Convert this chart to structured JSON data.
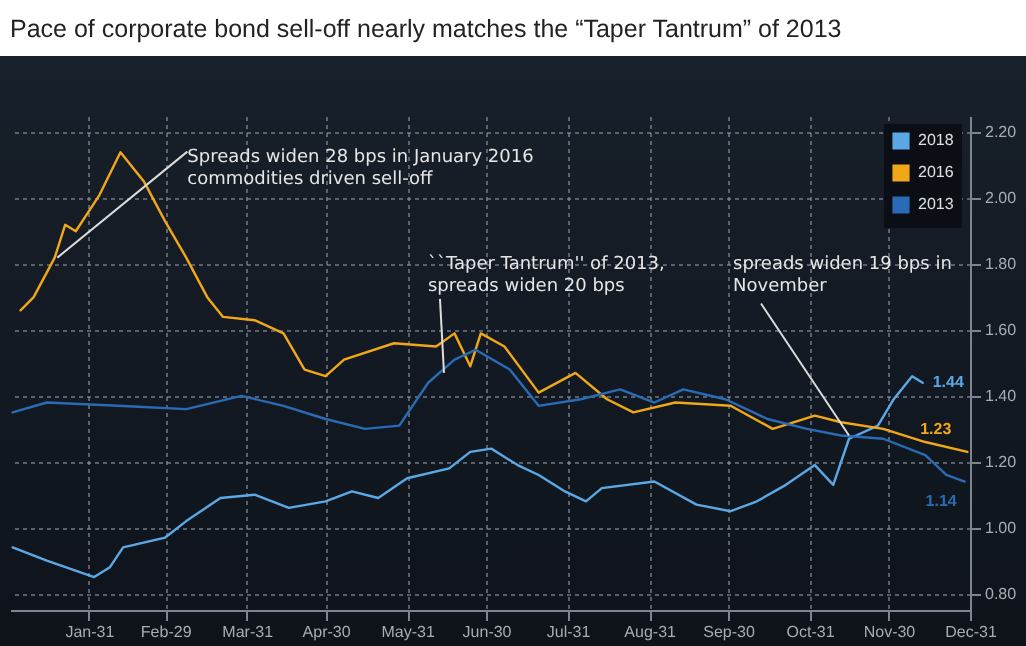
{
  "chart_data": {
    "type": "line",
    "title": "Pace of corporate bond sell-off nearly matches the “Taper Tantrum” of 2013",
    "xlim": [
      "--01-01",
      "--12-31"
    ],
    "xticks": [
      {
        "value": "--01-31",
        "label": "Jan-31"
      },
      {
        "value": "--02-29",
        "label": "Feb-29"
      },
      {
        "value": "--03-31",
        "label": "Mar-31"
      },
      {
        "value": "--04-30",
        "label": "Apr-30"
      },
      {
        "value": "--05-31",
        "label": "May-31"
      },
      {
        "value": "--06-30",
        "label": "Jun-30"
      },
      {
        "value": "--07-31",
        "label": "Jul-31"
      },
      {
        "value": "--08-31",
        "label": "Aug-31"
      },
      {
        "value": "--09-30",
        "label": "Sep-30"
      },
      {
        "value": "--10-31",
        "label": "Oct-31"
      },
      {
        "value": "--11-30",
        "label": "Nov-30"
      },
      {
        "value": "--12-31",
        "label": "Dec-31"
      }
    ],
    "ylim": [
      0.75,
      2.25
    ],
    "yticks": [
      {
        "value": 0.8,
        "label": "0.80"
      },
      {
        "value": 1.0,
        "label": "1.00"
      },
      {
        "value": 1.2,
        "label": "1.20"
      },
      {
        "value": 1.4,
        "label": "1.40"
      },
      {
        "value": 1.6,
        "label": "1.60"
      },
      {
        "value": 1.8,
        "label": "1.80"
      },
      {
        "value": 2.0,
        "label": "2.00"
      },
      {
        "value": 2.2,
        "label": "2.20"
      }
    ],
    "grid": true,
    "legend": "top right",
    "line_style": "solid",
    "series": [
      {
        "name": "2018",
        "color": "#5aa9e6",
        "x": [
          "--01-02",
          "--01-15",
          "--02-02",
          "--02-08",
          "--02-13",
          "--02-29",
          "--03-08",
          "--03-21",
          "--04-03",
          "--04-16",
          "--04-30",
          "--05-10",
          "--05-20",
          "--05-31",
          "--06-16",
          "--06-24",
          "--07-02",
          "--07-12",
          "--07-20",
          "--07-30",
          "--08-07",
          "--08-13",
          "--09-02",
          "--09-18",
          "--10-01",
          "--10-11",
          "--10-22",
          "--11-02",
          "--11-09",
          "--11-15",
          "--11-26",
          "--12-02",
          "--12-09",
          "--12-13"
        ],
        "values": [
          0.94,
          0.9,
          0.85,
          0.88,
          0.94,
          0.97,
          1.02,
          1.09,
          1.1,
          1.06,
          1.08,
          1.11,
          1.09,
          1.15,
          1.18,
          1.23,
          1.24,
          1.19,
          1.16,
          1.11,
          1.08,
          1.12,
          1.14,
          1.07,
          1.05,
          1.08,
          1.13,
          1.19,
          1.13,
          1.27,
          1.31,
          1.39,
          1.46,
          1.44
        ],
        "value_labels": [
          null,
          null,
          null,
          null,
          null,
          null,
          null,
          null,
          null,
          null,
          null,
          null,
          null,
          null,
          null,
          null,
          null,
          null,
          null,
          null,
          null,
          null,
          null,
          null,
          null,
          null,
          null,
          null,
          null,
          null,
          null,
          null,
          null,
          "1.44"
        ]
      },
      {
        "name": "2016",
        "color": "#f0a818",
        "x": [
          "--01-05",
          "--01-10",
          "--01-18",
          "--01-22",
          "--01-26",
          "--02-04",
          "--02-12",
          "--02-21",
          "--02-29",
          "--03-08",
          "--03-16",
          "--03-22",
          "--04-03",
          "--04-14",
          "--04-22",
          "--04-30",
          "--05-07",
          "--05-26",
          "--06-11",
          "--06-18",
          "--06-24",
          "--06-28",
          "--07-07",
          "--07-20",
          "--08-03",
          "--08-15",
          "--08-25",
          "--09-10",
          "--10-01",
          "--10-17",
          "--11-02",
          "--11-12",
          "--11-28",
          "--12-14",
          "--12-30"
        ],
        "values": [
          1.66,
          1.7,
          1.82,
          1.92,
          1.9,
          2.01,
          2.14,
          2.05,
          1.93,
          1.82,
          1.7,
          1.64,
          1.63,
          1.59,
          1.48,
          1.46,
          1.51,
          1.56,
          1.55,
          1.59,
          1.49,
          1.59,
          1.55,
          1.41,
          1.47,
          1.39,
          1.35,
          1.38,
          1.37,
          1.3,
          1.34,
          1.32,
          1.3,
          1.26,
          1.23
        ],
        "value_labels": [
          null,
          null,
          null,
          null,
          null,
          null,
          null,
          null,
          null,
          null,
          null,
          null,
          null,
          null,
          null,
          null,
          null,
          null,
          null,
          null,
          null,
          null,
          null,
          null,
          null,
          null,
          null,
          null,
          null,
          null,
          null,
          null,
          null,
          null,
          "1.23"
        ]
      },
      {
        "name": "2013",
        "color": "#2a6bb5",
        "x": [
          "--01-02",
          "--01-15",
          "--02-11",
          "--03-08",
          "--03-29",
          "--04-14",
          "--04-30",
          "--05-15",
          "--05-28",
          "--06-08",
          "--06-18",
          "--06-26",
          "--07-09",
          "--07-20",
          "--08-05",
          "--08-20",
          "--09-02",
          "--09-13",
          "--09-29",
          "--10-15",
          "--10-30",
          "--11-12",
          "--11-28",
          "--12-14",
          "--12-22",
          "--12-29"
        ],
        "values": [
          1.35,
          1.38,
          1.37,
          1.36,
          1.4,
          1.37,
          1.33,
          1.3,
          1.31,
          1.44,
          1.51,
          1.54,
          1.48,
          1.37,
          1.39,
          1.42,
          1.38,
          1.42,
          1.39,
          1.33,
          1.3,
          1.28,
          1.27,
          1.22,
          1.16,
          1.14
        ],
        "value_labels": [
          null,
          null,
          null,
          null,
          null,
          null,
          null,
          null,
          null,
          null,
          null,
          null,
          null,
          null,
          null,
          null,
          null,
          null,
          null,
          null,
          null,
          null,
          null,
          null,
          null,
          "1.14"
        ]
      }
    ],
    "annotations": [
      {
        "text": "Spreads widen 28 bps in January 2016\ncommodities driven sell-off",
        "x": "--01-19",
        "y": 1.82
      },
      {
        "text": "``Taper Tantrum'' of 2013,\nspreads widen 20 bps",
        "x": "--06-14",
        "y": 1.47
      },
      {
        "text": "spreads widen 19 bps in\nNovember",
        "x": "--11-15",
        "y": 1.28
      }
    ]
  }
}
